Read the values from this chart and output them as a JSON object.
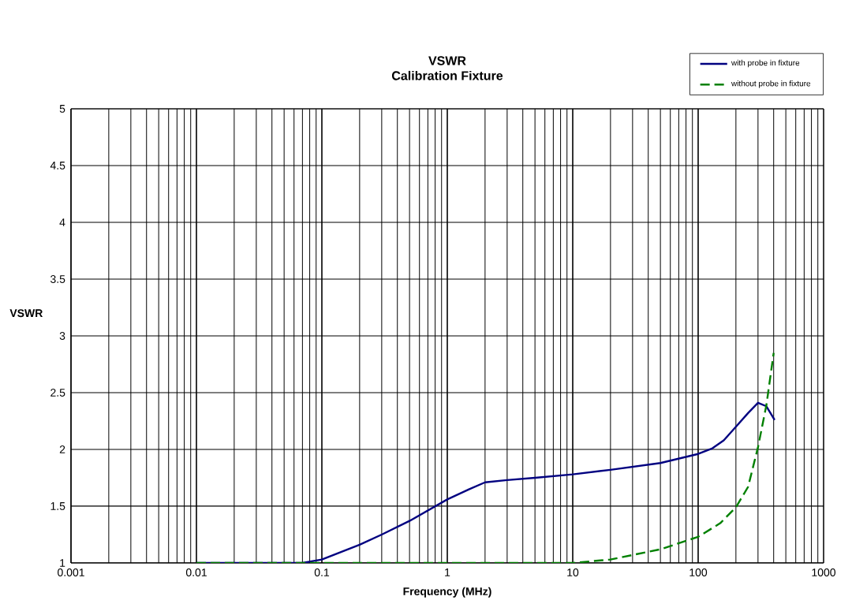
{
  "chart_data": {
    "type": "line",
    "title": "VSWR",
    "subtitle": "Calibration Fixture",
    "xlabel": "Frequency (MHz)",
    "ylabel": "VSWR",
    "log": "x",
    "grid": true,
    "legend": "top right",
    "xlim": [
      0.001,
      1000
    ],
    "xticks": [
      0.001,
      0.01,
      0.1,
      1,
      10,
      100,
      1000
    ],
    "ylim": [
      1,
      5
    ],
    "yticks": [
      1,
      1.5,
      2,
      2.5,
      3,
      3.5,
      4,
      4.5,
      5
    ],
    "series": [
      {
        "name": "with probe in fixture",
        "color": "#000080",
        "line_style": "solid",
        "x": [
          0.01,
          0.02,
          0.03,
          0.05,
          0.07,
          0.1,
          0.2,
          0.3,
          0.5,
          1,
          1.5,
          2,
          3,
          5,
          10,
          20,
          50,
          100,
          130,
          160,
          200,
          250,
          300,
          350,
          407
        ],
        "values": [
          1.0,
          1.0,
          1.0,
          1.0,
          1.0,
          1.03,
          1.16,
          1.25,
          1.37,
          1.56,
          1.65,
          1.71,
          1.73,
          1.75,
          1.78,
          1.82,
          1.88,
          1.96,
          2.01,
          2.08,
          2.2,
          2.32,
          2.41,
          2.38,
          2.26
        ]
      },
      {
        "name": "without probe in fixture",
        "color": "#008000",
        "line_style": "dashed",
        "x": [
          0.01,
          0.1,
          1,
          5,
          10,
          20,
          30,
          50,
          100,
          150,
          200,
          250,
          300,
          350,
          400
        ],
        "values": [
          1.0,
          1.0,
          1.0,
          1.0,
          1.0,
          1.03,
          1.07,
          1.12,
          1.23,
          1.35,
          1.49,
          1.67,
          2.02,
          2.39,
          2.85
        ]
      }
    ]
  }
}
